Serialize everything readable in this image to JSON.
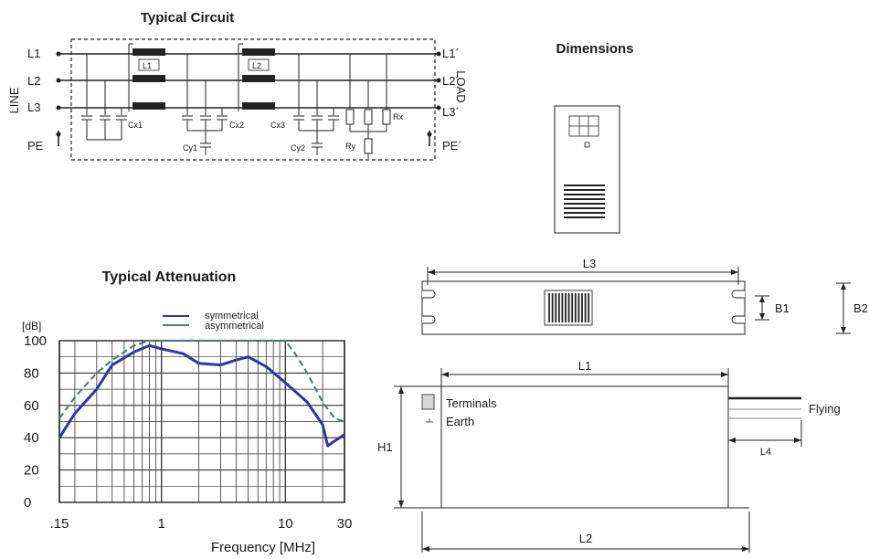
{
  "circuit": {
    "title": "Typical Circuit",
    "line_label": "LINE",
    "load_label": "LOAD",
    "inputs": [
      "L1",
      "L2",
      "L3",
      "PE"
    ],
    "outputs": [
      "L1´",
      "L2´",
      "L3´",
      "PE´"
    ],
    "chokes": [
      "L1",
      "L2"
    ],
    "components": [
      "Cx1",
      "Cx2",
      "Cx3",
      "Cy1",
      "Cy2",
      "Rx",
      "Ry"
    ]
  },
  "dimensions": {
    "title": "Dimensions",
    "labels": [
      "L3",
      "B1",
      "B2",
      "L1",
      "L2",
      "L4",
      "H1"
    ],
    "terminals": "Terminals",
    "earth": "Earth",
    "flying": "Flying"
  },
  "chart_data": {
    "type": "line",
    "title": "Typical Attenuation",
    "xlabel": "Frequency [MHz]",
    "ylabel": "[dB]",
    "xscale": "log",
    "xlim": [
      0.15,
      30
    ],
    "ylim": [
      0,
      100
    ],
    "xticks": [
      ".15",
      "1",
      "10",
      "30"
    ],
    "yticks": [
      "0",
      "20",
      "40",
      "60",
      "80",
      "100"
    ],
    "legend_position": "top",
    "grid": true,
    "series": [
      {
        "name": "symmetrical",
        "color": "#3333aa",
        "points": [
          [
            0.15,
            40
          ],
          [
            0.2,
            55
          ],
          [
            0.3,
            70
          ],
          [
            0.4,
            85
          ],
          [
            0.6,
            93
          ],
          [
            0.8,
            97
          ],
          [
            1,
            95
          ],
          [
            1.5,
            92
          ],
          [
            2,
            86
          ],
          [
            3,
            85
          ],
          [
            4,
            88
          ],
          [
            5,
            90
          ],
          [
            7,
            84
          ],
          [
            10,
            74
          ],
          [
            15,
            62
          ],
          [
            20,
            48
          ],
          [
            22,
            35
          ],
          [
            25,
            38
          ],
          [
            30,
            42
          ]
        ]
      },
      {
        "name": "asymmetrical",
        "color": "#5a7a78",
        "points": [
          [
            0.15,
            52
          ],
          [
            0.2,
            65
          ],
          [
            0.3,
            80
          ],
          [
            0.4,
            88
          ],
          [
            0.5,
            93
          ],
          [
            0.6,
            97
          ],
          [
            0.8,
            100
          ],
          [
            10,
            100
          ],
          [
            12,
            92
          ],
          [
            15,
            80
          ],
          [
            20,
            62
          ],
          [
            25,
            52
          ],
          [
            30,
            50
          ]
        ]
      }
    ]
  }
}
